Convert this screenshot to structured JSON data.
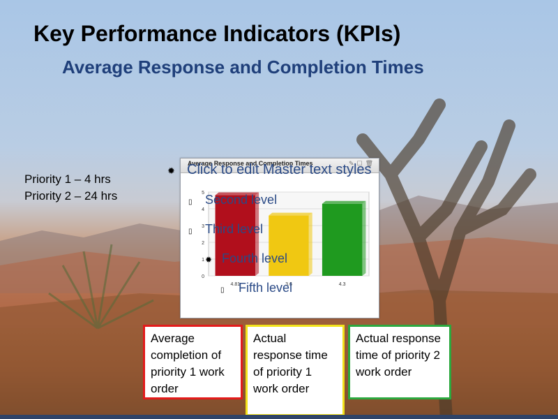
{
  "slide": {
    "title": "Key Performance Indicators (KPIs)",
    "subtitle": "Average Response and Completion Times"
  },
  "priorities": {
    "line1": "Priority 1 – 4 hrs",
    "line2": "Priority 2 – 24 hrs"
  },
  "master_text": {
    "level1": "Click to edit Master text styles",
    "level2": "Second level",
    "level3": "Third level",
    "level4": "Fourth level",
    "level5": "Fifth level"
  },
  "chart_panel": {
    "title": "Average Response and Completion Times",
    "toolbar_icons": [
      "edit-icon",
      "maximize-icon",
      "delete-icon"
    ]
  },
  "chart_data": {
    "type": "bar",
    "categories": [
      "4.81",
      "3.6",
      "4.3"
    ],
    "values": [
      4.81,
      3.6,
      4.3
    ],
    "colors": [
      "#b10f1c",
      "#f0c812",
      "#1f9a1f"
    ],
    "ylim": [
      0,
      5
    ],
    "yticks": [
      "0",
      "1",
      "2",
      "3",
      "4",
      "5"
    ],
    "grid": true
  },
  "legend_boxes": [
    {
      "text": "Average completion of priority 1 work order",
      "border": "#e31b1b"
    },
    {
      "text": "Actual response time of priority 1 work order",
      "border": "#f2e21a"
    },
    {
      "text": "Actual response time of priority 2 work order",
      "border": "#2ca83e"
    }
  ]
}
